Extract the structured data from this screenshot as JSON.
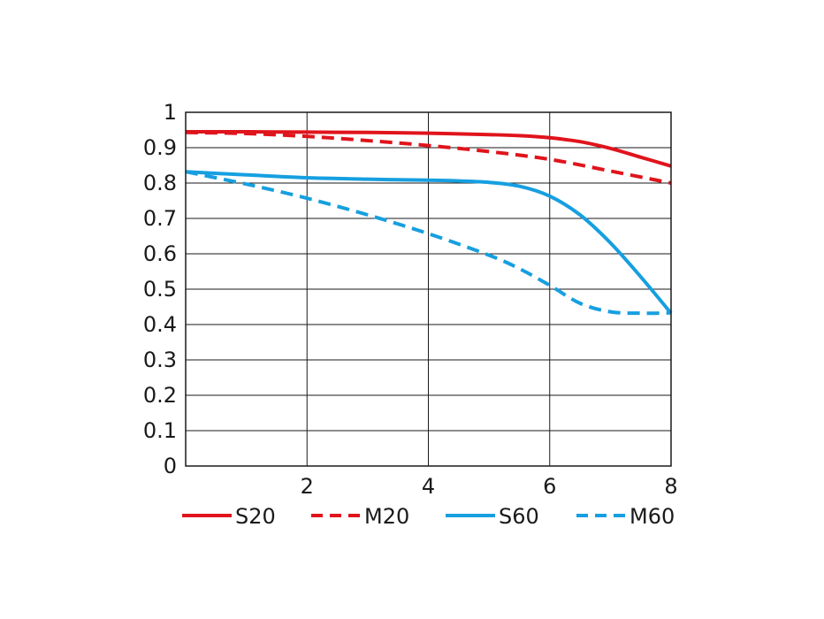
{
  "chart_data": {
    "type": "line",
    "title": "",
    "xlabel": "",
    "ylabel": "",
    "xlim": [
      0,
      8
    ],
    "ylim": [
      0,
      1
    ],
    "x_ticks": [
      "2",
      "4",
      "6",
      "8"
    ],
    "y_ticks": [
      "0",
      "0.1",
      "0.2",
      "0.3",
      "0.4",
      "0.5",
      "0.6",
      "0.7",
      "0.8",
      "0.9",
      "1"
    ],
    "grid": true,
    "legend_position": "bottom",
    "series": [
      {
        "name": "S20",
        "color": "#e0141c",
        "style": "solid",
        "x": [
          0,
          1,
          2,
          3,
          4,
          5,
          5.5,
          6,
          6.5,
          7,
          7.5,
          8
        ],
        "y": [
          0.945,
          0.945,
          0.944,
          0.943,
          0.941,
          0.937,
          0.934,
          0.928,
          0.917,
          0.898,
          0.873,
          0.848
        ]
      },
      {
        "name": "M20",
        "color": "#e0141c",
        "style": "dashed",
        "x": [
          0,
          1,
          2,
          3,
          4,
          5,
          6,
          7,
          8
        ],
        "y": [
          0.943,
          0.94,
          0.932,
          0.92,
          0.906,
          0.889,
          0.867,
          0.834,
          0.8
        ]
      },
      {
        "name": "S60",
        "color": "#169fe0",
        "style": "solid",
        "x": [
          0,
          1,
          2,
          3,
          4,
          4.5,
          5,
          5.5,
          6,
          6.5,
          7,
          7.5,
          8
        ],
        "y": [
          0.832,
          0.823,
          0.815,
          0.811,
          0.808,
          0.806,
          0.802,
          0.791,
          0.763,
          0.71,
          0.631,
          0.535,
          0.432
        ]
      },
      {
        "name": "M60",
        "color": "#169fe0",
        "style": "dashed",
        "x": [
          0,
          1,
          2,
          3,
          4,
          5,
          5.5,
          6,
          6.5,
          7,
          7.5,
          8
        ],
        "y": [
          0.832,
          0.797,
          0.757,
          0.71,
          0.657,
          0.596,
          0.558,
          0.511,
          0.46,
          0.436,
          0.432,
          0.433
        ]
      }
    ]
  }
}
